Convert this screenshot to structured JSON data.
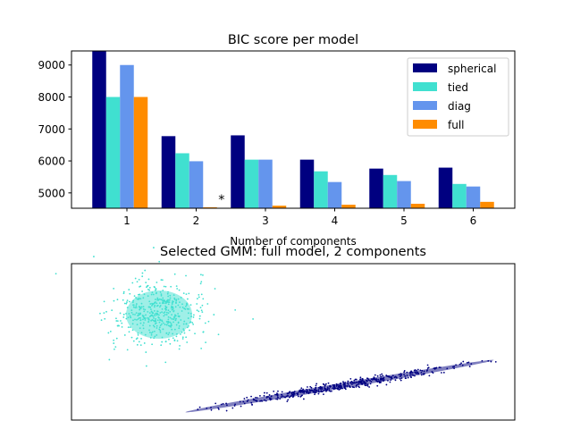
{
  "chart_data": [
    {
      "type": "bar",
      "title": "BIC score per model",
      "xlabel": "Number of components",
      "ylabel": "",
      "categories": [
        "1",
        "2",
        "3",
        "4",
        "5",
        "6"
      ],
      "yticks": [
        "5000",
        "6000",
        "7000",
        "8000",
        "9000"
      ],
      "ylim": [
        4520,
        9440
      ],
      "xlim": [
        0.2,
        6.6
      ],
      "legend_position": "top-right",
      "series": [
        {
          "name": "spherical",
          "color": "#000080",
          "values": [
            9450,
            6775,
            6800,
            6040,
            5760,
            5790
          ]
        },
        {
          "name": "tied",
          "color": "#40E0D0",
          "values": [
            8000,
            6240,
            6040,
            5675,
            5560,
            5280
          ]
        },
        {
          "name": "diag",
          "color": "#6495ED",
          "values": [
            9000,
            5990,
            6040,
            5340,
            5370,
            5200
          ]
        },
        {
          "name": "full",
          "color": "#FF8C00",
          "values": [
            8000,
            4550,
            4600,
            4630,
            4660,
            4720
          ]
        }
      ],
      "annotation": {
        "text": "*",
        "category": "2"
      }
    },
    {
      "type": "scatter",
      "title": "Selected GMM: full model, 2 components",
      "xticks": [],
      "yticks": [],
      "series": [
        {
          "color": "#40E0D0"
        },
        {
          "color": "#000080"
        }
      ]
    }
  ]
}
